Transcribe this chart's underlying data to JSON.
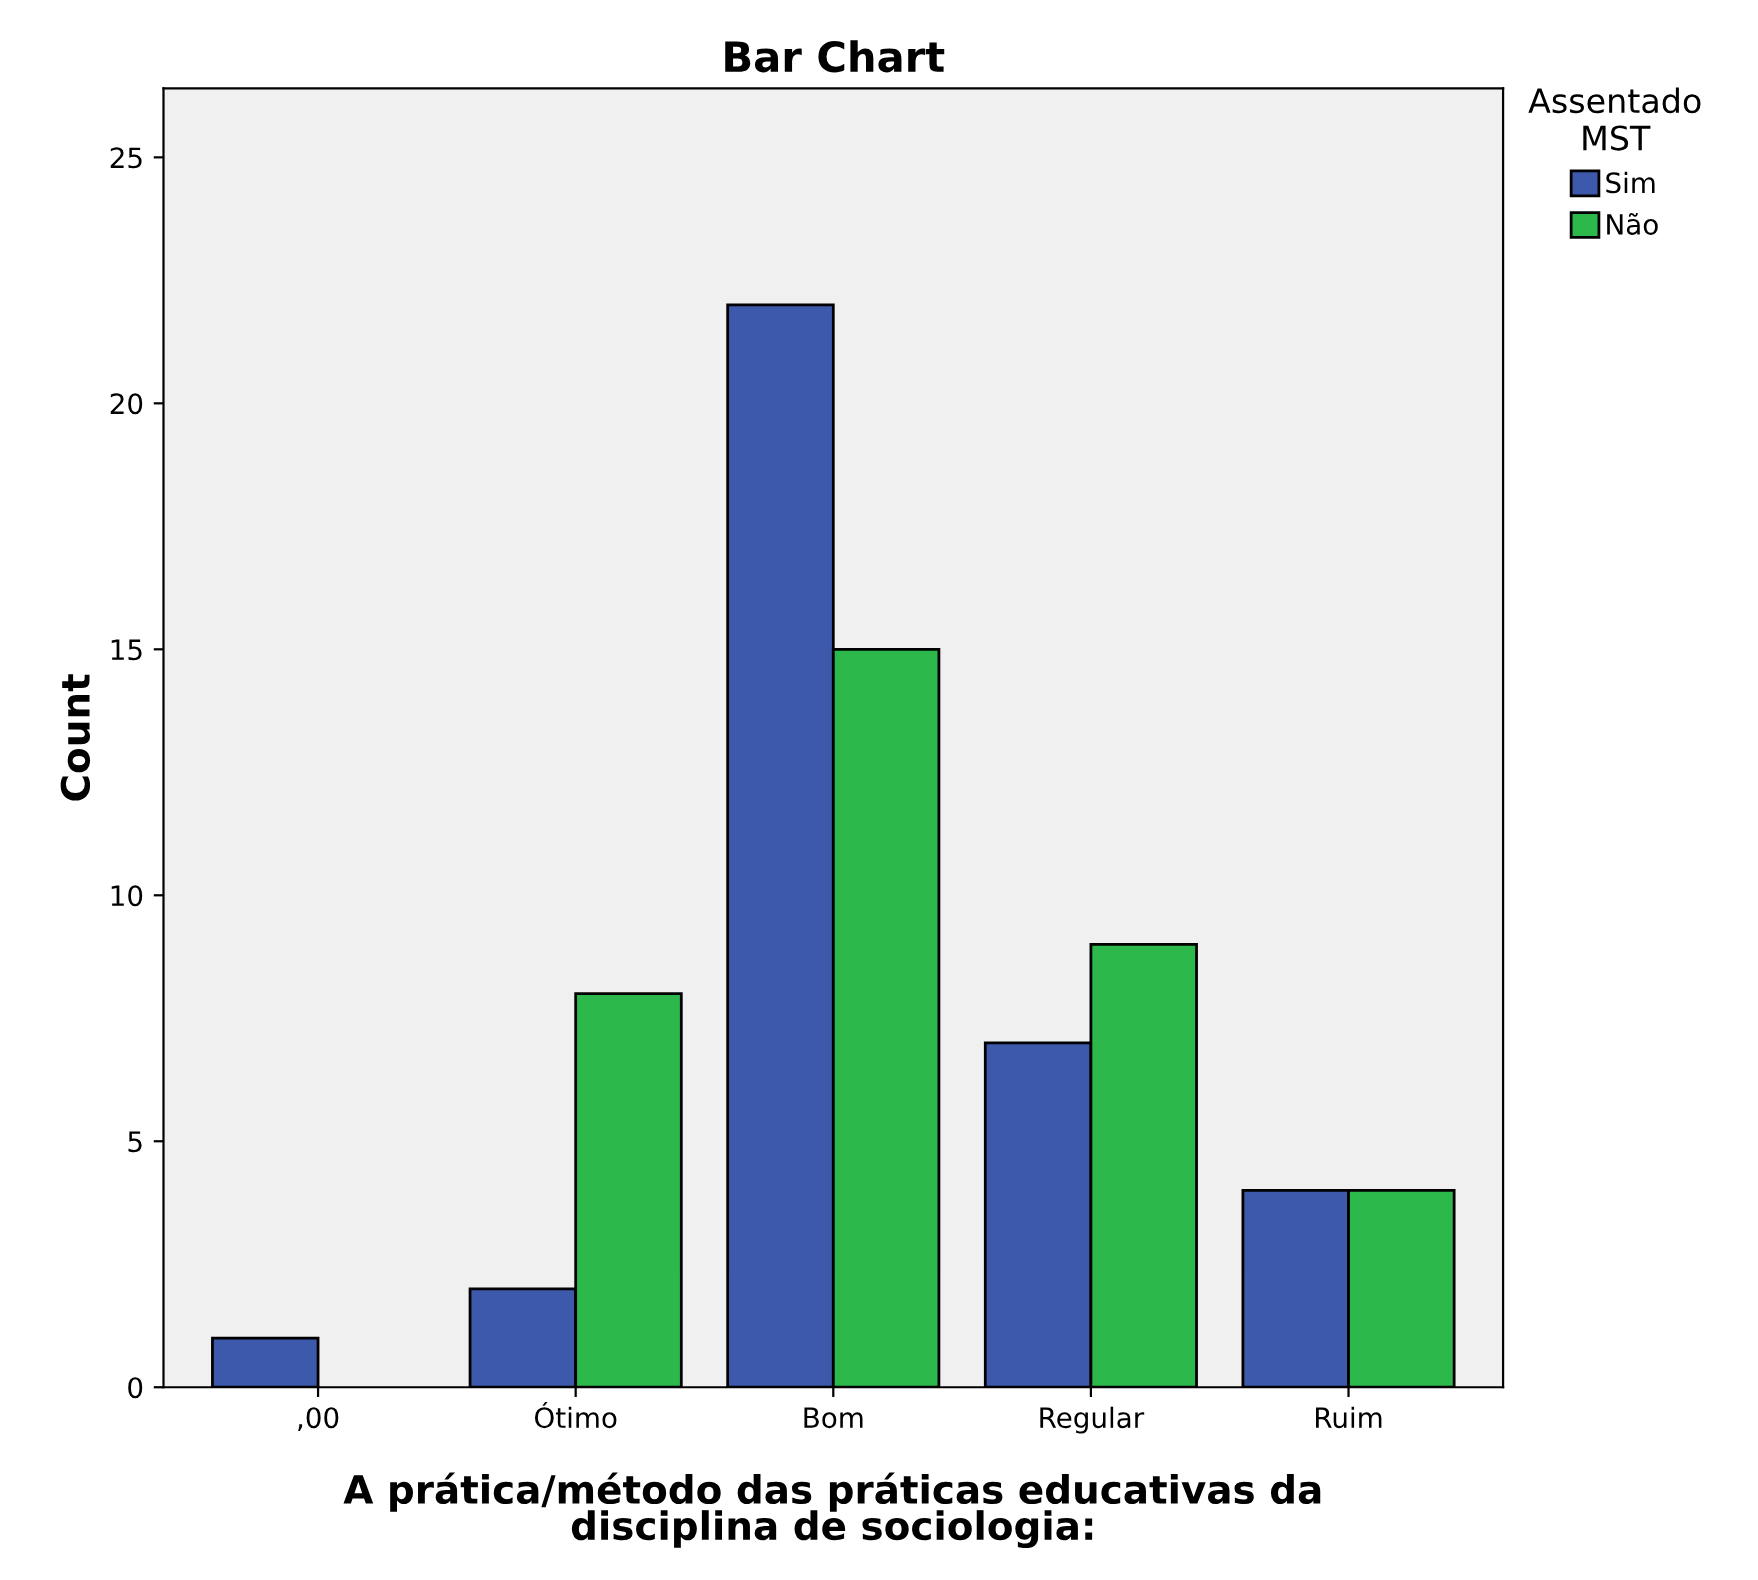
{
  "chart_data": {
    "type": "bar",
    "title": "Bar Chart",
    "xlabel": "A prática/método das práticas educativas da\ndisciplina de sociologia:",
    "ylabel": "Count",
    "legend_title": "Assentado\nMST",
    "categories": [
      ",00",
      "Ótimo",
      "Bom",
      "Regular",
      "Ruim"
    ],
    "series": [
      {
        "name": "Sim",
        "color": "#3d59ab",
        "values": [
          1,
          2,
          22,
          7,
          4
        ]
      },
      {
        "name": "Não",
        "color": "#2db84b",
        "values": [
          null,
          8,
          15,
          9,
          4
        ]
      }
    ],
    "ylim": [
      0,
      26.4
    ],
    "yticks": [
      0,
      5,
      10,
      15,
      20,
      25
    ],
    "grid": false,
    "legend": "top right"
  }
}
